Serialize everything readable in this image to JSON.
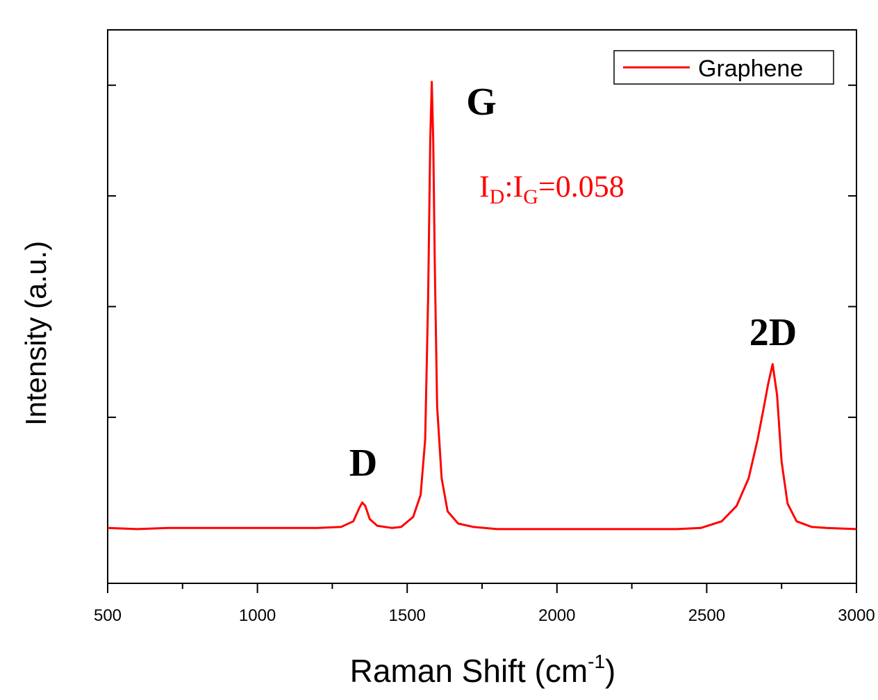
{
  "chart_data": {
    "type": "line",
    "x_label": [
      "Raman Shift (cm",
      "-1",
      ")"
    ],
    "y_label": "Intensity (a.u.)",
    "annotations": [
      "G",
      "D",
      "2D"
    ],
    "ratio_label": [
      "I",
      "D",
      ":I",
      "G",
      "=0.058"
    ],
    "legend": "upper right",
    "xlim": [
      500,
      3000
    ],
    "xticks": [
      500,
      1000,
      1500,
      2000,
      2500,
      3000
    ],
    "xminorticks": [
      750,
      1250,
      1750,
      2250,
      2750
    ],
    "ylim": [
      0,
      5
    ],
    "yticks": [
      1.5,
      2.5,
      3.5,
      4.5
    ],
    "x": [
      500,
      600,
      700,
      800,
      900,
      1000,
      1100,
      1200,
      1280,
      1320,
      1340,
      1350,
      1360,
      1375,
      1400,
      1450,
      1480,
      1520,
      1545,
      1560,
      1570,
      1577,
      1582,
      1587,
      1592,
      1600,
      1615,
      1635,
      1670,
      1720,
      1800,
      1900,
      2000,
      2100,
      2200,
      2300,
      2400,
      2480,
      2550,
      2600,
      2640,
      2670,
      2690,
      2705,
      2720,
      2735,
      2750,
      2770,
      2800,
      2850,
      2900,
      3000
    ],
    "series": [
      {
        "name": "Graphene",
        "color": "#ff0000",
        "values": [
          0.5,
          0.49,
          0.5,
          0.5,
          0.5,
          0.5,
          0.5,
          0.5,
          0.51,
          0.56,
          0.68,
          0.73,
          0.7,
          0.58,
          0.52,
          0.5,
          0.51,
          0.6,
          0.8,
          1.3,
          2.6,
          4.0,
          4.53,
          4.0,
          2.9,
          1.6,
          0.95,
          0.65,
          0.54,
          0.51,
          0.49,
          0.49,
          0.49,
          0.49,
          0.49,
          0.49,
          0.49,
          0.5,
          0.56,
          0.7,
          0.95,
          1.3,
          1.58,
          1.8,
          1.98,
          1.7,
          1.1,
          0.72,
          0.56,
          0.51,
          0.5,
          0.49
        ]
      }
    ]
  }
}
